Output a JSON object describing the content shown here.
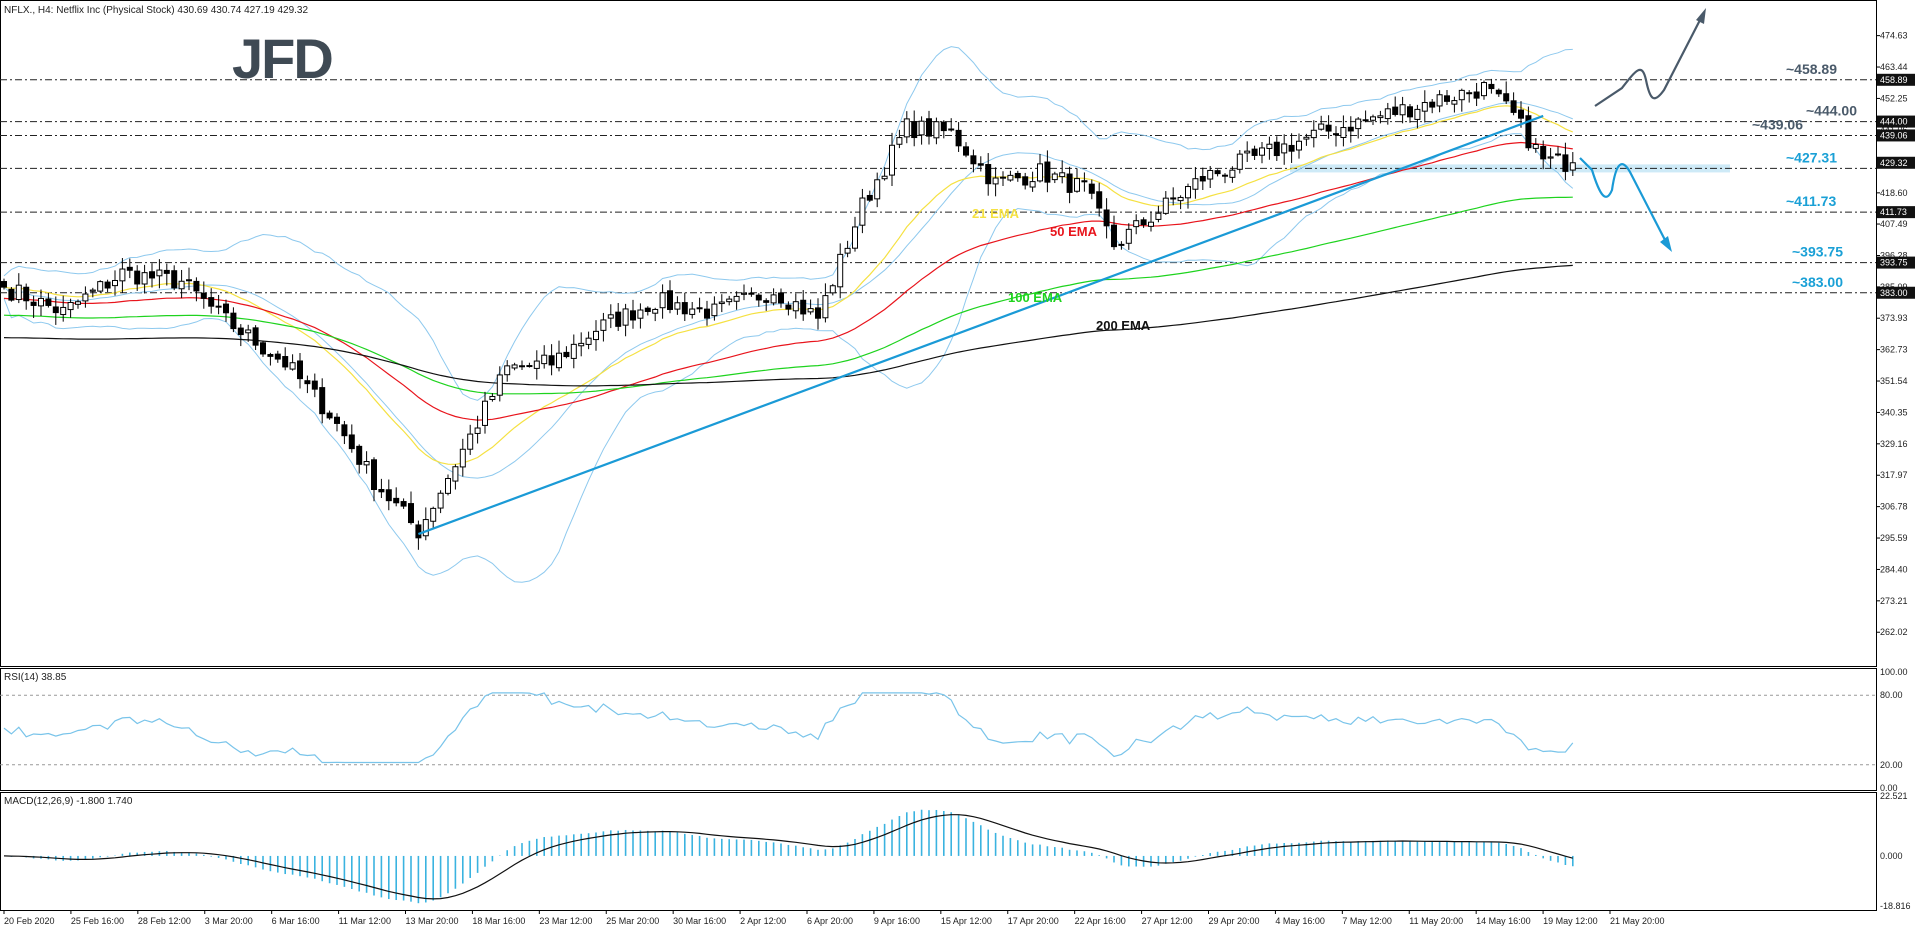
{
  "header": {
    "symbol_info": "NFLX., H4:  Netflix Inc (Physical Stock)  430.69 430.74 427.19 429.32"
  },
  "logo": {
    "text": "JFD"
  },
  "colors": {
    "candle_bull": "#ffffff",
    "candle_bear": "#000000",
    "candle_outline": "#000000",
    "ema21": "#f5e142",
    "ema50": "#e8141c",
    "ema100": "#1ed31e",
    "ema200": "#111111",
    "bollinger": "#8ec9ee",
    "trendline": "#1a9ad6",
    "level_line": "#222222",
    "support_zone": "#c9e8f6",
    "bull_arrow": "#4a5a6a",
    "bear_arrow": "#1a9ad6",
    "label_dark": "#4a5a6a",
    "label_blue": "#1aa0d6",
    "rsi_line": "#79c4ea",
    "macd_hist": "#3ab3e0",
    "macd_signal": "#111111"
  },
  "chart_data": [
    {
      "type": "candlestick",
      "panel": "price",
      "symbol": "NFLX.",
      "timeframe": "H4",
      "yaxis_ticks": [
        "474.63",
        "463.44",
        "452.25",
        "441.06",
        "429.91",
        "418.60",
        "407.49",
        "396.28",
        "385.09",
        "373.93",
        "362.73",
        "351.54",
        "340.35",
        "329.16",
        "317.97",
        "306.78",
        "295.59",
        "284.40",
        "273.21",
        "262.02"
      ],
      "price_tags": [
        {
          "value": 458.89,
          "text": "458.89",
          "style": "dark"
        },
        {
          "value": 444.0,
          "text": "444.00",
          "style": "dark"
        },
        {
          "value": 439.06,
          "text": "439.06",
          "style": "dark"
        },
        {
          "value": 429.32,
          "text": "429.32",
          "style": "dark"
        },
        {
          "value": 411.73,
          "text": "411.73",
          "style": "dark"
        },
        {
          "value": 393.75,
          "text": "393.75",
          "style": "dark"
        },
        {
          "value": 383.0,
          "text": "383.00",
          "style": "dark"
        }
      ],
      "x_labels": [
        "20 Feb 2020",
        "25 Feb 16:00",
        "28 Feb 12:00",
        "3 Mar 20:00",
        "6 Mar 16:00",
        "11 Mar 12:00",
        "13 Mar 20:00",
        "18 Mar 16:00",
        "23 Mar 12:00",
        "25 Mar 20:00",
        "30 Mar 16:00",
        "2 Apr 12:00",
        "6 Apr 20:00",
        "9 Apr 16:00",
        "15 Apr 12:00",
        "17 Apr 20:00",
        "22 Apr 16:00",
        "27 Apr 12:00",
        "29 Apr 20:00",
        "4 May 16:00",
        "7 May 12:00",
        "11 May 20:00",
        "14 May 16:00",
        "19 May 12:00",
        "21 May 20:00"
      ],
      "anchors": [
        {
          "i": 0,
          "close": 385
        },
        {
          "i": 8,
          "close": 376
        },
        {
          "i": 16,
          "close": 390
        },
        {
          "i": 24,
          "close": 387
        },
        {
          "i": 30,
          "close": 373
        },
        {
          "i": 38,
          "close": 358
        },
        {
          "i": 44,
          "close": 340
        },
        {
          "i": 50,
          "close": 316
        },
        {
          "i": 56,
          "close": 298
        },
        {
          "i": 62,
          "close": 327
        },
        {
          "i": 68,
          "close": 356
        },
        {
          "i": 74,
          "close": 358
        },
        {
          "i": 80,
          "close": 370
        },
        {
          "i": 88,
          "close": 380
        },
        {
          "i": 96,
          "close": 376
        },
        {
          "i": 104,
          "close": 384
        },
        {
          "i": 110,
          "close": 374
        },
        {
          "i": 116,
          "close": 414
        },
        {
          "i": 122,
          "close": 442
        },
        {
          "i": 128,
          "close": 440
        },
        {
          "i": 134,
          "close": 422
        },
        {
          "i": 140,
          "close": 426
        },
        {
          "i": 146,
          "close": 420
        },
        {
          "i": 150,
          "close": 400
        },
        {
          "i": 156,
          "close": 412
        },
        {
          "i": 162,
          "close": 424
        },
        {
          "i": 170,
          "close": 432
        },
        {
          "i": 178,
          "close": 440
        },
        {
          "i": 186,
          "close": 446
        },
        {
          "i": 194,
          "close": 452
        },
        {
          "i": 200,
          "close": 456
        },
        {
          "i": 204,
          "close": 446
        },
        {
          "i": 208,
          "close": 430
        },
        {
          "i": 212,
          "close": 429.32
        }
      ],
      "overlays": {
        "ema_labels": [
          {
            "text": "21 EMA",
            "color": "#f5e142"
          },
          {
            "text": "50 EMA",
            "color": "#e8141c"
          },
          {
            "text": "100 EMA",
            "color": "#1ed31e"
          },
          {
            "text": "200 EMA",
            "color": "#111111"
          }
        ],
        "trendline": {
          "from": {
            "i": 56,
            "price": 297
          },
          "to": {
            "i": 208,
            "price": 446
          }
        },
        "levels": [
          {
            "value": 458.89,
            "label": "~458.89",
            "color": "#4a5a6a"
          },
          {
            "value": 444.0,
            "label": "~444.00",
            "color": "#4a5a6a"
          },
          {
            "value": 439.06,
            "label": "~439.06",
            "color": "#4a5a6a"
          },
          {
            "value": 427.31,
            "label": "~427.31",
            "color": "#1aa0d6"
          },
          {
            "value": 411.73,
            "label": "~411.73",
            "color": "#1aa0d6"
          },
          {
            "value": 393.75,
            "label": "~393.75",
            "color": "#1aa0d6"
          },
          {
            "value": 383.0,
            "label": "~383.00",
            "color": "#1aa0d6"
          }
        ]
      }
    },
    {
      "type": "line",
      "panel": "rsi",
      "title": "RSI(14) 38.85",
      "yaxis_ticks": [
        "100.00",
        "80.00",
        "20.00",
        "0.00"
      ],
      "levels": [
        80,
        20
      ],
      "last_value": 38.85
    },
    {
      "type": "histogram+line",
      "panel": "macd",
      "title": "MACD(12,26,9) -1.800 1.740",
      "yaxis_ticks": [
        "22.521",
        "0.000",
        "-18.816"
      ]
    }
  ]
}
